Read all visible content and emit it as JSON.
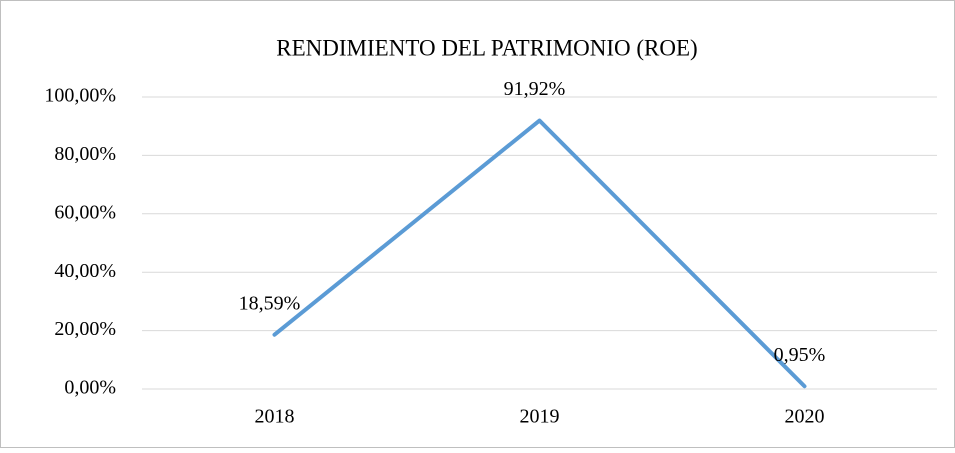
{
  "chart_data": {
    "type": "line",
    "title": "RENDIMIENTO DEL PATRIMONIO (ROE)",
    "categories": [
      "2018",
      "2019",
      "2020"
    ],
    "series": [
      {
        "name": "ROE",
        "color": "#5b9bd5",
        "values": [
          18.59,
          91.92,
          0.95
        ],
        "value_labels": [
          "18,59%",
          "91,92%",
          "0,95%"
        ]
      }
    ],
    "ylim": [
      0,
      100
    ],
    "yticks": [
      {
        "value": 0,
        "label": "0,00%"
      },
      {
        "value": 20,
        "label": "20,00%"
      },
      {
        "value": 40,
        "label": "40,00%"
      },
      {
        "value": 60,
        "label": "60,00%"
      },
      {
        "value": 80,
        "label": "80,00%"
      },
      {
        "value": 100,
        "label": "100,00%"
      }
    ],
    "grid": true
  }
}
